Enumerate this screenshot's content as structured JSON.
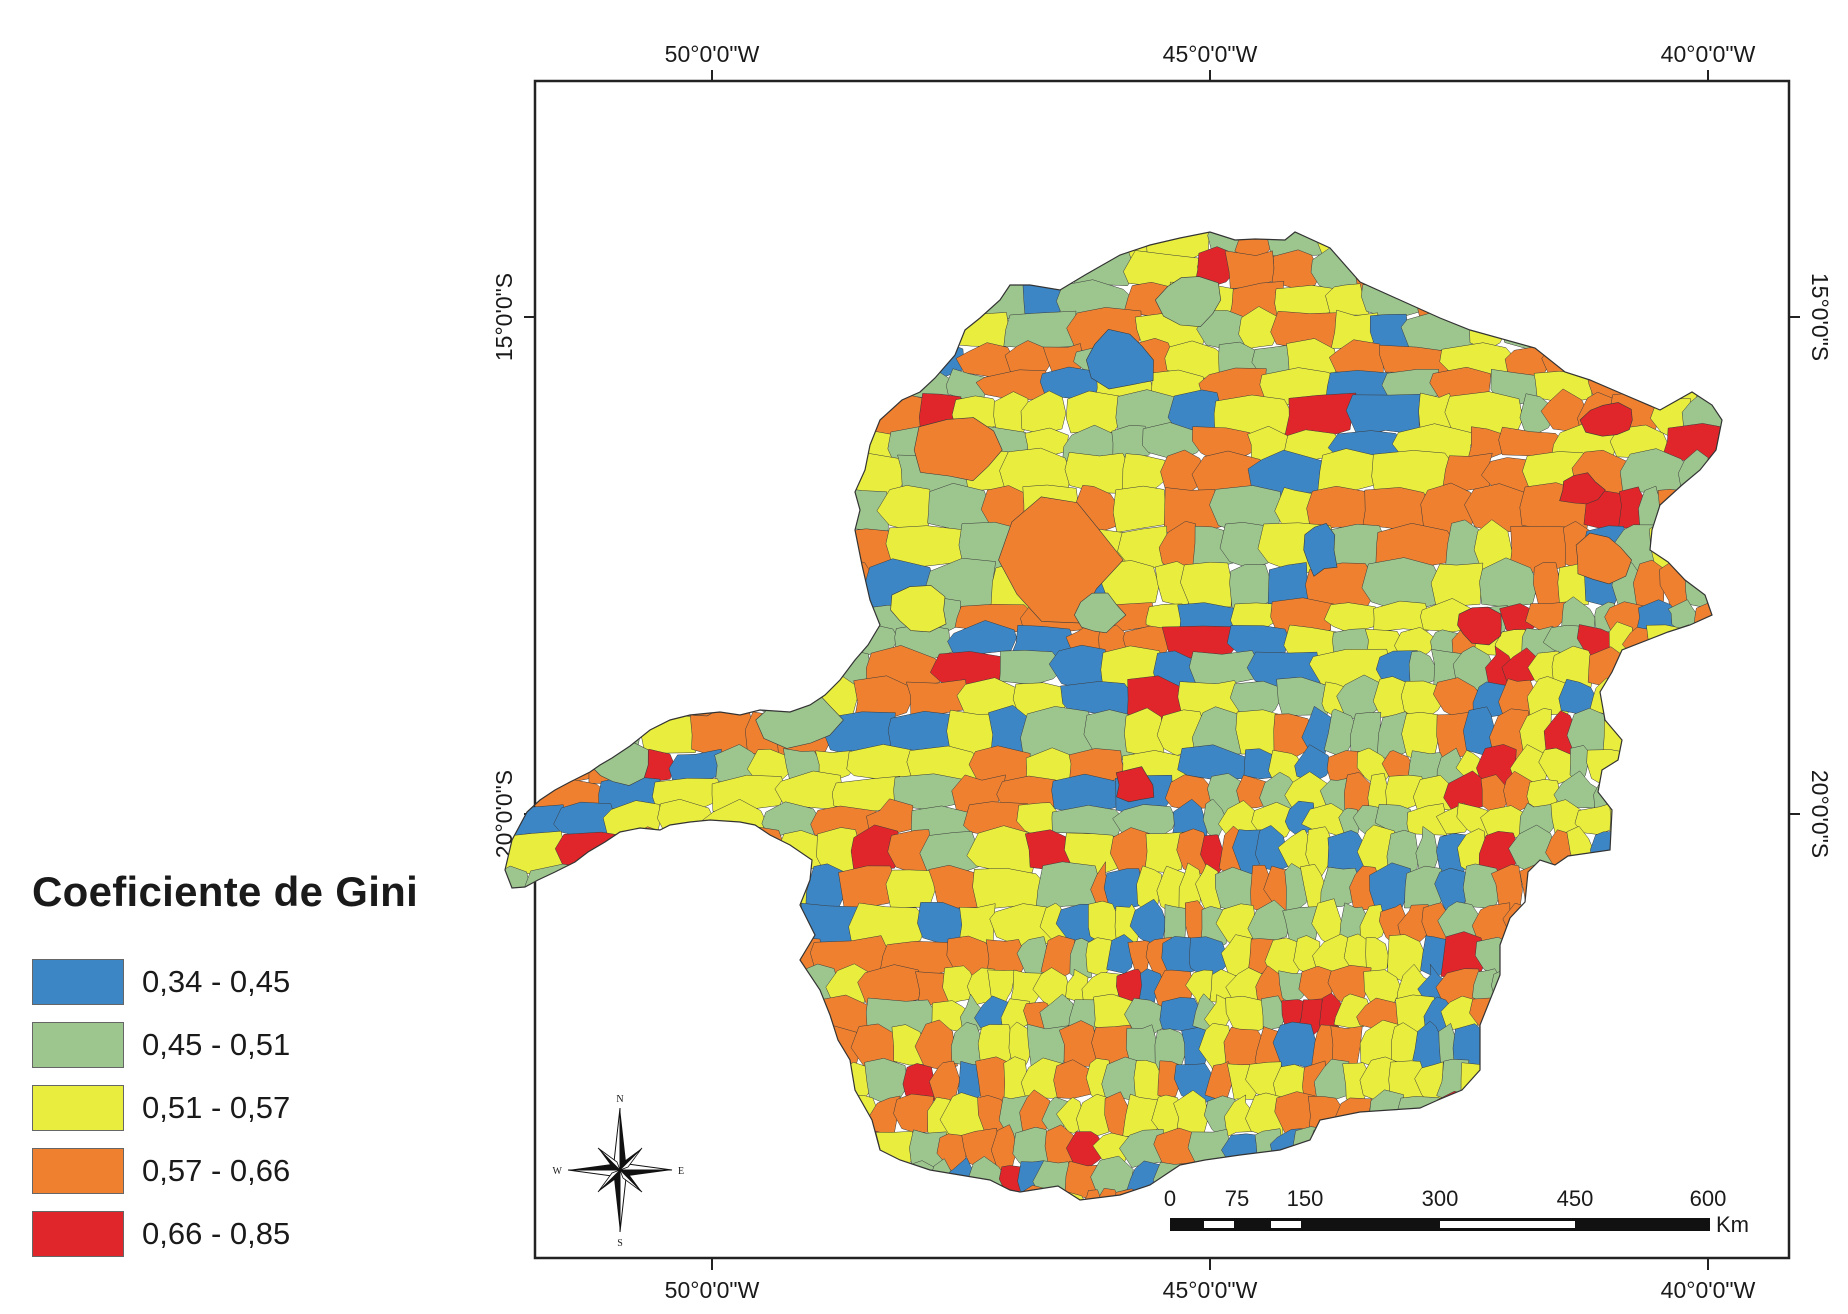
{
  "map": {
    "top_ticks": [
      "50°0'0\"W",
      "45°0'0\"W",
      "40°0'0\"W"
    ],
    "bottom_ticks": [
      "50°0'0\"W",
      "45°0'0\"W",
      "40°0'0\"W"
    ],
    "left_ticks": [
      "15°0'0\"S",
      "20°0'0\"S"
    ],
    "right_ticks": [
      "15°0'0\"S",
      "20°0'0\"S"
    ]
  },
  "legend": {
    "title": "Coeficiente de Gini",
    "classes": [
      {
        "label": "0,34 - 0,45",
        "color": "#3d86c6"
      },
      {
        "label": "0,45 - 0,51",
        "color": "#9dc58e"
      },
      {
        "label": "0,51 - 0,57",
        "color": "#e9ee3e"
      },
      {
        "label": "0,57 - 0,66",
        "color": "#ef8030"
      },
      {
        "label": "0,66 - 0,85",
        "color": "#e0262a"
      }
    ]
  },
  "scale_bar": {
    "labels": [
      "0",
      "75",
      "150",
      "300",
      "450",
      "600"
    ],
    "unit": "Km"
  },
  "compass": {
    "n": "N",
    "s": "S",
    "e": "E",
    "w": "W"
  },
  "chart_data": {
    "type": "map",
    "region": "state choropleth of municipalities",
    "variable": "Coeficiente de Gini",
    "classes": [
      {
        "min": 0.34,
        "max": 0.45,
        "label": "0,34 - 0,45",
        "color": "#3d86c6"
      },
      {
        "min": 0.45,
        "max": 0.51,
        "label": "0,45 - 0,51",
        "color": "#9dc58e"
      },
      {
        "min": 0.51,
        "max": 0.57,
        "label": "0,51 - 0,57",
        "color": "#e9ee3e"
      },
      {
        "min": 0.57,
        "max": 0.66,
        "label": "0,57 - 0,66",
        "color": "#ef8030"
      },
      {
        "min": 0.66,
        "max": 0.85,
        "label": "0,66 - 0,85",
        "color": "#e0262a"
      }
    ],
    "longitude_ticks_deg_w": [
      50,
      45,
      40
    ],
    "latitude_ticks_deg_s": [
      15,
      20
    ],
    "scale_bar_km": [
      0,
      75,
      150,
      300,
      450,
      600
    ]
  }
}
